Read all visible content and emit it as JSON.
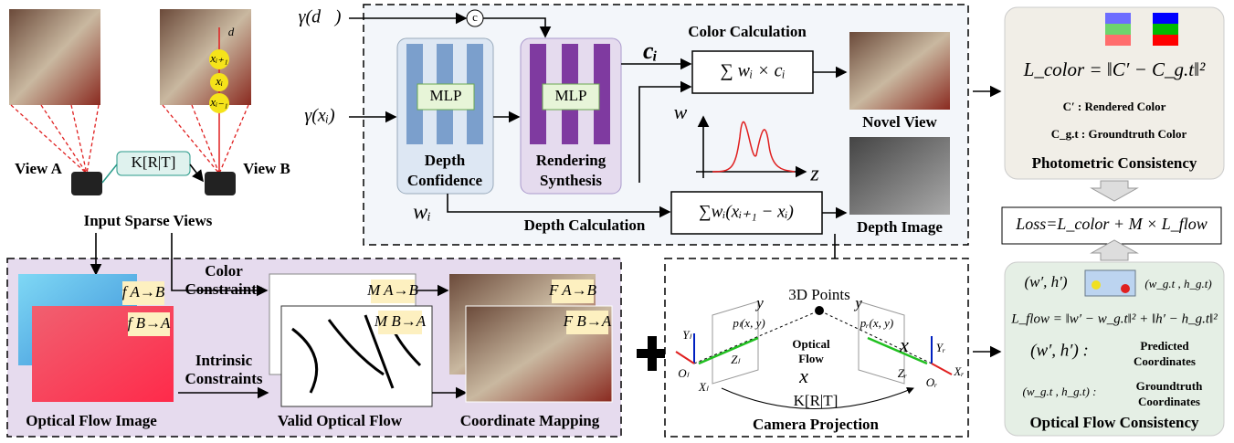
{
  "input_views": {
    "view_a": "View A",
    "view_b": "View B",
    "transform": "K[R|T]",
    "caption": "Input Sparse Views",
    "ray_labels": [
      "d⃗",
      "xᵢ₊₁",
      "xᵢ",
      "xᵢ₋₁"
    ]
  },
  "encodings": {
    "direction": "γ(d⃗)",
    "position": "γ(xᵢ)",
    "concat": "c"
  },
  "network": {
    "depth_mlp": "MLP",
    "depth_label": [
      "Depth",
      "Confidence"
    ],
    "render_mlp": "MLP",
    "render_label": [
      "Rendering",
      "Synthesis"
    ],
    "color_out": "cᵢ",
    "weight_out": "wᵢ"
  },
  "color_calc": {
    "title": "Color Calculation",
    "formula": "∑ wᵢ × cᵢ",
    "axis_w": "w",
    "axis_z": "z",
    "output": "Novel View"
  },
  "depth_calc": {
    "title": "Depth Calculation",
    "formula": "∑wᵢ(xᵢ₊₁ − xᵢ)",
    "output": "Depth Image"
  },
  "photometric": {
    "formula": "L_color = ‖C′ − C_g.t‖²",
    "rendered": "C′ : Rendered Color",
    "groundtruth": "C_g.t : Groundtruth Color",
    "title": "Photometric Consistency"
  },
  "loss": "Loss=L_color + M × L_flow",
  "flow_consistency": {
    "pred_point": "(w′, h′)",
    "gt_point": "(w_g.t , h_g.t)",
    "formula": "L_flow = ‖w′ − w_g.t‖² + ‖h′ − h_g.t‖²",
    "pred_label": "(w′, h′) :",
    "pred_desc": [
      "Predicted",
      "Coordinates"
    ],
    "gt_label": "(w_g.t , h_g.t) :",
    "gt_desc": [
      "Groundtruth",
      "Coordinates"
    ],
    "title": "Optical Flow Consistency"
  },
  "optical_flow": {
    "color_constraints": [
      "Color",
      "Constraints"
    ],
    "intrinsic_constraints": [
      "Intrinsic",
      "Constraints"
    ],
    "f_ab": "f A→B",
    "f_ba": "f B→A",
    "m_ab": "M A→B",
    "m_ba": "M B→A",
    "F_ab": "F A→B",
    "F_ba": "F B→A",
    "captions": [
      "Optical Flow Image",
      "Valid Optical Flow",
      "Coordinate Mapping"
    ]
  },
  "camera_projection": {
    "points": "3D Points",
    "y_l": "y",
    "p_l": "pₗ(x, y)",
    "y_r": "y",
    "p_r": "pᵣ(x, y)",
    "x_r": "x",
    "flow": [
      "Optical",
      "Flow"
    ],
    "x_mid": "x",
    "Y_l": "Yₗ",
    "Z_l": "Zₗ",
    "O_l": "Oₗ",
    "X_l": "Xₗ",
    "Y_r": "Yᵣ",
    "Z_r": "Zᵣ",
    "O_r": "Oᵣ",
    "X_r": "Xᵣ",
    "transform": "K[R|T]",
    "title": "Camera Projection"
  }
}
